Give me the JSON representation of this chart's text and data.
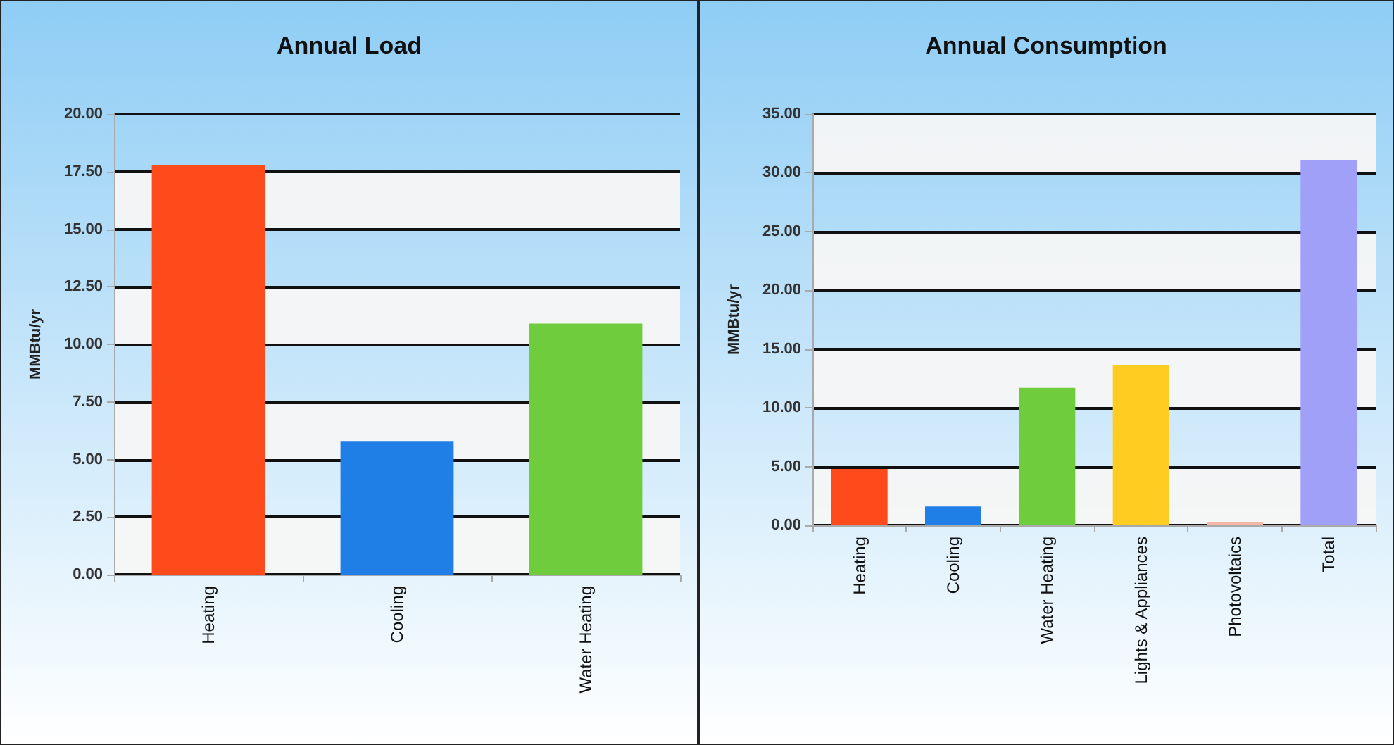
{
  "chart_data": [
    {
      "type": "bar",
      "title": "Annual Load",
      "ylabel": "MMBtu/yr",
      "categories": [
        "Heating",
        "Cooling",
        "Water Heating"
      ],
      "values": [
        17.8,
        5.8,
        10.9
      ],
      "colors": [
        "#ff4a1c",
        "#1f7fe6",
        "#6fcc3c"
      ],
      "ylim": [
        0,
        20
      ],
      "yticks": [
        {
          "value": 0,
          "label": "0.00"
        },
        {
          "value": 2.5,
          "label": "2.50"
        },
        {
          "value": 5,
          "label": "5.00"
        },
        {
          "value": 7.5,
          "label": "7.50"
        },
        {
          "value": 10,
          "label": "10.00"
        },
        {
          "value": 12.5,
          "label": "12.50"
        },
        {
          "value": 15,
          "label": "15.00"
        },
        {
          "value": 17.5,
          "label": "17.50"
        },
        {
          "value": 20,
          "label": "20.00"
        }
      ],
      "grid": "y"
    },
    {
      "type": "bar",
      "title": "Annual Consumption",
      "ylabel": "MMBtu/yr",
      "categories": [
        "Heating",
        "Cooling",
        "Water Heating",
        "Lights & Appliances",
        "Photovoltaics",
        "Total"
      ],
      "values": [
        4.8,
        1.6,
        11.7,
        13.6,
        0.3,
        31.1
      ],
      "colors": [
        "#ff4a1c",
        "#1f7fe6",
        "#6fcc3c",
        "#ffcc22",
        "#f4b8a8",
        "#a0a0f8"
      ],
      "ylim": [
        0,
        35
      ],
      "yticks": [
        {
          "value": 0,
          "label": "0.00"
        },
        {
          "value": 5,
          "label": "5.00"
        },
        {
          "value": 10,
          "label": "10.00"
        },
        {
          "value": 15,
          "label": "15.00"
        },
        {
          "value": 20,
          "label": "20.00"
        },
        {
          "value": 25,
          "label": "25.00"
        },
        {
          "value": 30,
          "label": "30.00"
        },
        {
          "value": 35,
          "label": "35.00"
        }
      ],
      "grid": "y"
    }
  ]
}
